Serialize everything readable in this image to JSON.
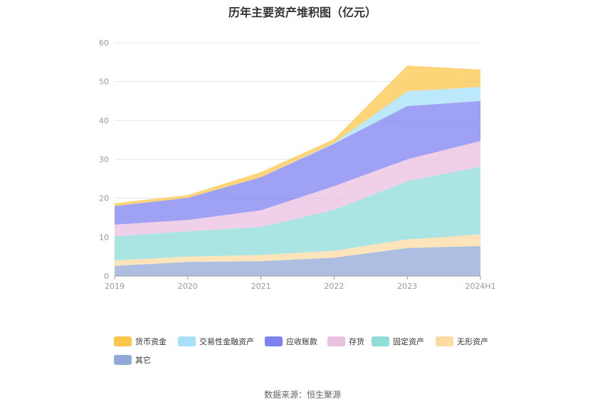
{
  "chart_data": {
    "type": "area",
    "stacked": true,
    "title": "历年主要资产堆积图（亿元）",
    "categories": [
      "2019",
      "2020",
      "2021",
      "2022",
      "2023",
      "2024H1"
    ],
    "ylim": [
      0,
      60
    ],
    "yticks": [
      0,
      10,
      20,
      30,
      40,
      50,
      60
    ],
    "grid": true,
    "legend_position": "bottom",
    "series": [
      {
        "name": "其它",
        "color": "#91a8d8",
        "values": [
          2.6,
          3.6,
          3.8,
          4.7,
          7.2,
          7.7
        ]
      },
      {
        "name": "无形资产",
        "color": "#fddba3",
        "values": [
          1.4,
          1.4,
          1.6,
          1.8,
          2.2,
          3.0
        ]
      },
      {
        "name": "固定资产",
        "color": "#8fdcd9",
        "values": [
          6.2,
          6.5,
          7.2,
          10.5,
          15.0,
          17.4
        ]
      },
      {
        "name": "存货",
        "color": "#ebbfe0",
        "values": [
          3.0,
          2.9,
          4.3,
          6.1,
          5.6,
          6.6
        ]
      },
      {
        "name": "应收账款",
        "color": "#7e82f0",
        "values": [
          4.8,
          5.7,
          8.5,
          10.9,
          13.7,
          10.3
        ]
      },
      {
        "name": "交易性金融资产",
        "color": "#a6e0fa",
        "values": [
          0.0,
          0.0,
          0.0,
          0.2,
          3.8,
          3.6
        ]
      },
      {
        "name": "货币资金",
        "color": "#fcc64a",
        "values": [
          0.7,
          0.7,
          1.3,
          1.0,
          6.6,
          4.5
        ]
      }
    ],
    "legend_order": [
      "货币资金",
      "交易性金融资产",
      "应收账款",
      "存货",
      "固定资产",
      "无形资产",
      "其它"
    ]
  },
  "source_text": "数据来源：恒生聚源"
}
